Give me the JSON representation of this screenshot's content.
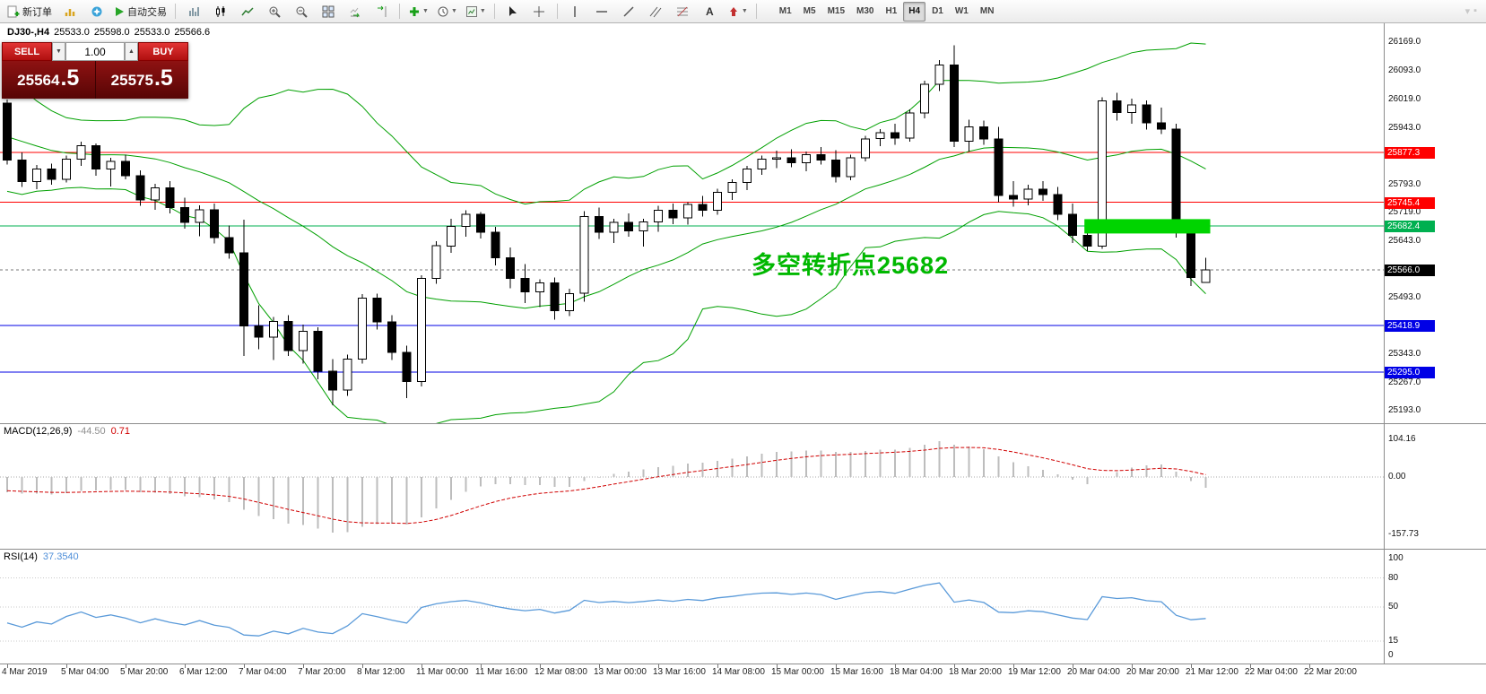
{
  "toolbar": {
    "new_order_label": "新订单",
    "autotrading_label": "自动交易",
    "timeframes": [
      "M1",
      "M5",
      "M15",
      "M30",
      "H1",
      "H4",
      "D1",
      "W1",
      "MN"
    ],
    "active_timeframe": "H4"
  },
  "header": {
    "symbol": "DJ30-,H4",
    "open": "25533.0",
    "high": "25598.0",
    "low": "25533.0",
    "close": "25566.6"
  },
  "trade_panel": {
    "sell_label": "SELL",
    "buy_label": "BUY",
    "volume": "1.00",
    "sell_price": "25564.5",
    "buy_price": "25575.5"
  },
  "chart_data": {
    "type": "candlestick",
    "symbol": "DJ30-",
    "timeframe": "H4",
    "price_scale_ticks": [
      "26169.0",
      "26093.0",
      "26019.0",
      "25943.0",
      "25867.0",
      "25793.0",
      "25719.0",
      "25643.0",
      "25493.0",
      "25343.0",
      "25267.0",
      "25193.0"
    ],
    "levels": [
      {
        "price": 25877.3,
        "label": "25877.3",
        "color": "#ff0000"
      },
      {
        "price": 25745.4,
        "label": "25745.4",
        "color": "#ff0000"
      },
      {
        "price": 25682.4,
        "label": "25682.4",
        "color": "#00b050"
      },
      {
        "price": 25418.9,
        "label": "25418.9",
        "color": "#0000e6"
      },
      {
        "price": 25295.0,
        "label": "25295.0",
        "color": "#0000e6"
      }
    ],
    "bid": {
      "price": 25566.0,
      "label": "25566.0",
      "color": "#000000"
    },
    "highlight": {
      "bar_start": 72.8,
      "bar_end": 81.3,
      "price_top": 25701,
      "price_bottom": 25663,
      "color": "#00d400"
    },
    "annotation": {
      "text": "多空转折点25682",
      "color": "#00b800"
    },
    "bollinger": {
      "period": 20,
      "deviation": 2,
      "color": "#00a000"
    },
    "macd": {
      "label": "MACD(12,26,9)",
      "value_main": "-44.50",
      "value_signal": "0.71",
      "scale": [
        "104.16",
        "0.00",
        "-157.73"
      ],
      "histogram_color": "#bdbdbd",
      "signal_color": "#d00000"
    },
    "rsi": {
      "label": "RSI(14)",
      "value": "37.3540",
      "scale": [
        "100",
        "80",
        "50",
        "15",
        "0"
      ],
      "levels": [
        80,
        50,
        15
      ],
      "line_color": "#5a9ad9"
    },
    "bars_per_label": 4,
    "time_labels": [
      "4 Mar 2019",
      "5 Mar 04:00",
      "5 Mar 20:00",
      "6 Mar 12:00",
      "7 Mar 04:00",
      "7 Mar 20:00",
      "8 Mar 12:00",
      "11 Mar 00:00",
      "11 Mar 16:00",
      "12 Mar 08:00",
      "13 Mar 00:00",
      "13 Mar 16:00",
      "14 Mar 08:00",
      "15 Mar 00:00",
      "15 Mar 16:00",
      "18 Mar 04:00",
      "18 Mar 20:00",
      "19 Mar 12:00",
      "20 Mar 04:00",
      "20 Mar 20:00",
      "21 Mar 12:00",
      "22 Mar 04:00",
      "22 Mar 20:00"
    ],
    "candles": [
      [
        26008,
        26018,
        25846,
        25858
      ],
      [
        25858,
        25878,
        25786,
        25800
      ],
      [
        25800,
        25844,
        25780,
        25834
      ],
      [
        25834,
        25848,
        25792,
        25806
      ],
      [
        25806,
        25870,
        25798,
        25860
      ],
      [
        25860,
        25906,
        25842,
        25896
      ],
      [
        25896,
        25902,
        25816,
        25834
      ],
      [
        25834,
        25864,
        25788,
        25854
      ],
      [
        25854,
        25872,
        25806,
        25816
      ],
      [
        25816,
        25830,
        25736,
        25752
      ],
      [
        25752,
        25794,
        25726,
        25784
      ],
      [
        25784,
        25802,
        25716,
        25732
      ],
      [
        25732,
        25758,
        25676,
        25692
      ],
      [
        25692,
        25738,
        25656,
        25726
      ],
      [
        25726,
        25742,
        25636,
        25652
      ],
      [
        25652,
        25684,
        25596,
        25612
      ],
      [
        25612,
        25700,
        25338,
        25418
      ],
      [
        25418,
        25472,
        25356,
        25388
      ],
      [
        25388,
        25442,
        25328,
        25430
      ],
      [
        25430,
        25446,
        25338,
        25352
      ],
      [
        25352,
        25422,
        25318,
        25404
      ],
      [
        25404,
        25414,
        25276,
        25298
      ],
      [
        25298,
        25330,
        25208,
        25248
      ],
      [
        25248,
        25342,
        25232,
        25330
      ],
      [
        25330,
        25502,
        25318,
        25492
      ],
      [
        25492,
        25504,
        25408,
        25428
      ],
      [
        25428,
        25446,
        25328,
        25348
      ],
      [
        25348,
        25366,
        25226,
        25270
      ],
      [
        25270,
        25552,
        25258,
        25544
      ],
      [
        25544,
        25642,
        25530,
        25630
      ],
      [
        25630,
        25702,
        25612,
        25682
      ],
      [
        25682,
        25724,
        25654,
        25714
      ],
      [
        25714,
        25720,
        25650,
        25666
      ],
      [
        25666,
        25680,
        25578,
        25598
      ],
      [
        25598,
        25626,
        25518,
        25544
      ],
      [
        25544,
        25582,
        25478,
        25508
      ],
      [
        25508,
        25542,
        25468,
        25532
      ],
      [
        25532,
        25546,
        25434,
        25458
      ],
      [
        25458,
        25516,
        25444,
        25504
      ],
      [
        25504,
        25722,
        25482,
        25708
      ],
      [
        25708,
        25732,
        25648,
        25666
      ],
      [
        25666,
        25702,
        25638,
        25692
      ],
      [
        25692,
        25716,
        25654,
        25670
      ],
      [
        25670,
        25702,
        25628,
        25694
      ],
      [
        25694,
        25736,
        25668,
        25724
      ],
      [
        25724,
        25742,
        25688,
        25704
      ],
      [
        25704,
        25746,
        25686,
        25740
      ],
      [
        25740,
        25762,
        25708,
        25724
      ],
      [
        25724,
        25782,
        25712,
        25772
      ],
      [
        25772,
        25806,
        25752,
        25798
      ],
      [
        25798,
        25842,
        25778,
        25834
      ],
      [
        25834,
        25870,
        25818,
        25860
      ],
      [
        25860,
        25882,
        25836,
        25864
      ],
      [
        25864,
        25886,
        25838,
        25850
      ],
      [
        25850,
        25880,
        25828,
        25872
      ],
      [
        25872,
        25892,
        25846,
        25858
      ],
      [
        25858,
        25884,
        25798,
        25814
      ],
      [
        25814,
        25872,
        25804,
        25864
      ],
      [
        25864,
        25922,
        25854,
        25914
      ],
      [
        25914,
        25940,
        25894,
        25930
      ],
      [
        25930,
        25954,
        25898,
        25916
      ],
      [
        25916,
        25992,
        25906,
        25982
      ],
      [
        25982,
        26068,
        25968,
        26058
      ],
      [
        26058,
        26122,
        26040,
        26110
      ],
      [
        26110,
        26162,
        25892,
        25908
      ],
      [
        25908,
        25964,
        25880,
        25946
      ],
      [
        25946,
        25962,
        25898,
        25914
      ],
      [
        25914,
        25946,
        25746,
        25764
      ],
      [
        25764,
        25802,
        25734,
        25754
      ],
      [
        25754,
        25792,
        25738,
        25780
      ],
      [
        25780,
        25802,
        25750,
        25766
      ],
      [
        25766,
        25786,
        25698,
        25714
      ],
      [
        25714,
        25742,
        25638,
        25658
      ],
      [
        25658,
        25682,
        25616,
        25630
      ],
      [
        25630,
        26024,
        25622,
        26014
      ],
      [
        26014,
        26036,
        25962,
        25984
      ],
      [
        25984,
        26020,
        25954,
        26004
      ],
      [
        26004,
        26016,
        25938,
        25956
      ],
      [
        25956,
        25996,
        25926,
        25940
      ],
      [
        25940,
        25954,
        25652,
        25670
      ],
      [
        25670,
        25692,
        25524,
        25546
      ],
      [
        25533,
        25598,
        25533,
        25566.6
      ]
    ]
  }
}
